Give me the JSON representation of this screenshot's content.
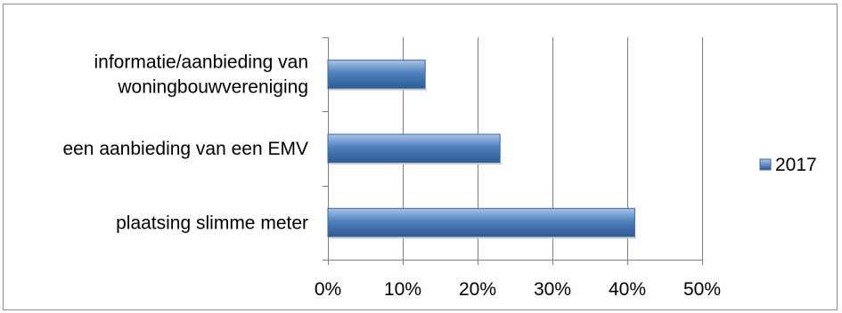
{
  "chart_data": {
    "type": "bar",
    "orientation": "horizontal",
    "categories": [
      "informatie/aanbieding van woningbouwvereniging",
      "een aanbieding van een EMV",
      "plaatsing slimme meter"
    ],
    "category_lines": [
      [
        "informatie/aanbieding van",
        "woningbouwvereniging"
      ],
      [
        "een aanbieding van een EMV"
      ],
      [
        "plaatsing slimme meter"
      ]
    ],
    "series": [
      {
        "name": "2017",
        "values": [
          0.13,
          0.23,
          0.41
        ]
      }
    ],
    "xlim": [
      0,
      0.5
    ],
    "ticks": [
      "0%",
      "10%",
      "20%",
      "30%",
      "40%",
      "50%"
    ],
    "grid": true,
    "legend_position": "right",
    "colors": {
      "bar_top": "#a9c4ea",
      "bar_mid": "#4f81bd",
      "bar_bottom": "#2c5a94",
      "bar_stroke": "#3a679f",
      "grid": "#7f7f7f",
      "axis": "#7f7f7f"
    }
  }
}
